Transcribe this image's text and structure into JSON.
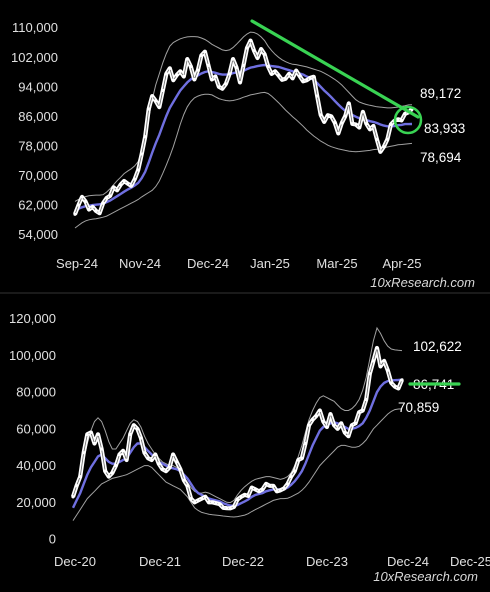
{
  "chart_data": [
    {
      "type": "line",
      "watermark": "10xResearch.com",
      "x_tick_labels": [
        "Sep-24",
        "Nov-24",
        "Dec-24",
        "Jan-25",
        "Mar-25",
        "Apr-25"
      ],
      "y_tick_labels": [
        "54,000",
        "62,000",
        "70,000",
        "78,000",
        "86,000",
        "94,000",
        "102,000",
        "110,000"
      ],
      "ylim": [
        52000,
        111000
      ],
      "callouts": [
        "89,172",
        "83,933",
        "78,694"
      ],
      "colors": {
        "price": "#ffffff",
        "ma": "#6f6fe0",
        "bands": "#bdbdbd",
        "trendline": "#39d353"
      },
      "series": [
        {
          "values": [
            59500,
            62000,
            64200,
            63000,
            60800,
            61500,
            60400,
            59800,
            62500,
            63900,
            64500,
            66800,
            66000,
            67500,
            68500,
            67800,
            67200,
            69000,
            71500,
            75800,
            80500,
            88000,
            91500,
            90200,
            88500,
            93000,
            97500,
            99000,
            95800,
            97200,
            98200,
            96800,
            101500,
            99500,
            96000,
            98500,
            102500,
            103500,
            99800,
            96000,
            96800,
            94000,
            93500,
            94800,
            97500,
            101500,
            99200,
            95200,
            99800,
            104500,
            106500,
            103800,
            101800,
            104200,
            102800,
            99500,
            97500,
            98200,
            97100,
            95900,
            96200,
            97500,
            96300,
            98400,
            96900,
            95500,
            95800,
            96400,
            96700,
            91500,
            86400,
            84500,
            86300,
            86000,
            84300,
            81400,
            84200,
            86100,
            89500,
            84000,
            83800,
            83000,
            87200,
            84000,
            82500,
            83400,
            79800,
            76400,
            77800,
            79800,
            83800,
            84800,
            85200,
            84900,
            86700,
            87100,
            88000
          ]
        },
        {
          "values": [
            60600,
            61000,
            61400,
            61700,
            61800,
            62000,
            62100,
            62200,
            62400,
            62800,
            63200,
            63800,
            64400,
            65000,
            65600,
            66200,
            66700,
            67300,
            68000,
            69300,
            71000,
            73500,
            76200,
            78700,
            81000,
            83600,
            86100,
            88300,
            89900,
            91500,
            93000,
            94100,
            95200,
            96000,
            96600,
            97100,
            97600,
            98000,
            98200,
            98000,
            97800,
            97500,
            97300,
            97300,
            97400,
            97700,
            97900,
            98000,
            98300,
            98800,
            99200,
            99400,
            99600,
            99800,
            99900,
            99800,
            99600,
            99500,
            99400,
            99100,
            98800,
            98500,
            98200,
            97900,
            97600,
            97300,
            96800,
            96400,
            95900,
            95000,
            94000,
            93000,
            92100,
            91200,
            90200,
            89200,
            88300,
            87500,
            87000,
            86400,
            85900,
            85500,
            85300,
            85000,
            84700,
            84500,
            84200,
            83800,
            83500,
            83300,
            83300,
            83400,
            83600,
            83700,
            83900,
            83900,
            83933
          ]
        },
        {
          "values": [
            63000,
            63500,
            64000,
            64300,
            64500,
            64600,
            64700,
            64700,
            64800,
            65500,
            66400,
            67500,
            68600,
            69500,
            70500,
            71200,
            71800,
            72600,
            73800,
            76500,
            80000,
            85500,
            90500,
            94500,
            97500,
            100500,
            103000,
            105000,
            106000,
            106500,
            107000,
            107300,
            107500,
            107600,
            107600,
            107500,
            107200,
            106800,
            106200,
            105500,
            105000,
            104500,
            104000,
            103800,
            104000,
            104600,
            105500,
            106500,
            107500,
            108300,
            108800,
            108700,
            108300,
            107500,
            106500,
            105000,
            103800,
            102800,
            102000,
            101300,
            100800,
            100400,
            100100,
            100000,
            99800,
            99600,
            99400,
            99100,
            98800,
            98500,
            98200,
            97700,
            97200,
            96600,
            96000,
            95300,
            94500,
            93500,
            92500,
            91500,
            90500,
            89900,
            89500,
            89200,
            89000,
            88800,
            88600,
            88500,
            88400,
            88300,
            88300,
            88400,
            88500,
            88700,
            88900,
            89100,
            89172
          ]
        },
        {
          "values": [
            55800,
            56500,
            57200,
            57700,
            58000,
            58200,
            58300,
            58500,
            58700,
            59000,
            59500,
            60000,
            60500,
            61000,
            61500,
            62000,
            62500,
            63000,
            63500,
            64200,
            64800,
            65400,
            66000,
            67000,
            68500,
            70600,
            72800,
            75200,
            77800,
            80800,
            83900,
            86500,
            88600,
            90000,
            91000,
            91500,
            91800,
            92000,
            92000,
            91800,
            91300,
            90800,
            90500,
            90300,
            90200,
            90300,
            90500,
            90800,
            91200,
            91500,
            91800,
            92000,
            92200,
            92400,
            92500,
            92200,
            91500,
            90600,
            89700,
            88700,
            87700,
            86800,
            85900,
            85100,
            84200,
            83300,
            82300,
            81500,
            80700,
            80000,
            79300,
            78800,
            78200,
            77800,
            77500,
            77200,
            77000,
            76800,
            76600,
            76500,
            76400,
            76500,
            76600,
            76700,
            76800,
            77000,
            77100,
            77300,
            77500,
            77700,
            77900,
            78100,
            78300,
            78400,
            78500,
            78600,
            78694
          ]
        }
      ]
    },
    {
      "type": "line",
      "watermark": "10xResearch.com",
      "x_tick_labels": [
        "Dec-20",
        "Dec-21",
        "Dec-22",
        "Dec-23",
        "Dec-24",
        "Dec-25"
      ],
      "y_tick_labels": [
        "0",
        "20,000",
        "40,000",
        "60,000",
        "80,000",
        "100,000",
        "120,000"
      ],
      "ylim": [
        0,
        122000
      ],
      "callouts": [
        "102,622",
        "86,741",
        "70,859"
      ],
      "colors": {
        "price": "#ffffff",
        "ma": "#6f6fe0",
        "bands": "#bdbdbd",
        "highlight": "#39d353"
      },
      "series": [
        {
          "values": [
            23000,
            29000,
            34000,
            47000,
            57000,
            58000,
            52000,
            57000,
            49000,
            37000,
            34000,
            36000,
            40000,
            46000,
            48000,
            43000,
            57000,
            62000,
            60000,
            55000,
            47000,
            44000,
            43000,
            46000,
            41000,
            38000,
            37000,
            39000,
            46000,
            42000,
            38000,
            32000,
            29000,
            22000,
            20000,
            21000,
            22000,
            23000,
            20000,
            20000,
            19500,
            19000,
            17000,
            16800,
            16700,
            17500,
            21500,
            23000,
            24000,
            23500,
            28000,
            27000,
            26000,
            27000,
            30000,
            29000,
            29000,
            26000,
            26500,
            27500,
            30000,
            34000,
            37000,
            43000,
            44000,
            52000,
            62000,
            65000,
            67000,
            70000,
            64000,
            61000,
            68000,
            62000,
            60000,
            63000,
            58000,
            56000,
            62000,
            63000,
            69000,
            70000,
            76000,
            90000,
            97000,
            104000,
            94000,
            97000,
            92000,
            85000,
            83000,
            82000,
            86700
          ]
        },
        {
          "values": [
            17000,
            21000,
            25000,
            30000,
            35000,
            39000,
            42000,
            45000,
            46000,
            44000,
            42000,
            41000,
            41000,
            42000,
            43000,
            44000,
            47000,
            50000,
            52000,
            52000,
            50000,
            48000,
            46000,
            44000,
            42000,
            41000,
            40000,
            39000,
            38500,
            38000,
            37000,
            35000,
            33000,
            30000,
            27000,
            25000,
            24000,
            23000,
            22000,
            21500,
            21000,
            20500,
            19500,
            18800,
            18200,
            18000,
            18500,
            19500,
            20500,
            21500,
            23000,
            24000,
            24500,
            25000,
            26000,
            26500,
            27000,
            27000,
            27000,
            27000,
            28000,
            29500,
            31500,
            34000,
            37000,
            41000,
            46000,
            51000,
            55000,
            59000,
            61000,
            62000,
            63000,
            63500,
            63000,
            62000,
            61000,
            60000,
            60000,
            60500,
            61500,
            63000,
            66000,
            70000,
            75000,
            80000,
            83000,
            85000,
            86000,
            86300,
            86500,
            86600,
            86741
          ]
        },
        {
          "values": [
            22000,
            28000,
            35000,
            43000,
            52000,
            59000,
            64000,
            66000,
            64000,
            59000,
            53000,
            49000,
            49000,
            52000,
            55000,
            59000,
            63000,
            65000,
            64000,
            61000,
            56000,
            52000,
            49000,
            46000,
            44000,
            42000,
            41000,
            40000,
            40000,
            39000,
            37000,
            34000,
            31000,
            28000,
            26000,
            25000,
            25000,
            25500,
            25000,
            24000,
            23000,
            22000,
            21000,
            20000,
            19800,
            21000,
            24000,
            26500,
            28500,
            30000,
            31500,
            32500,
            33000,
            33500,
            34000,
            34000,
            33500,
            33000,
            32500,
            33000,
            34000,
            36000,
            40000,
            45000,
            51000,
            58000,
            65000,
            70000,
            74000,
            77000,
            78000,
            77000,
            76000,
            75000,
            73000,
            71000,
            70000,
            70000,
            71000,
            73000,
            76000,
            81000,
            88000,
            98000,
            108000,
            115000,
            112000,
            108000,
            105000,
            103500,
            103000,
            102800,
            102622
          ]
        },
        {
          "values": [
            10000,
            13000,
            16000,
            19000,
            22000,
            24000,
            26000,
            28000,
            30000,
            31000,
            32000,
            33000,
            33500,
            34000,
            34500,
            35000,
            36000,
            37000,
            38000,
            39000,
            40000,
            40000,
            39000,
            37000,
            35000,
            33000,
            31000,
            30000,
            29000,
            28000,
            27000,
            25000,
            23000,
            20000,
            17000,
            15500,
            14500,
            14000,
            13500,
            13200,
            13000,
            12800,
            12500,
            12300,
            12100,
            12000,
            12200,
            12600,
            13000,
            13800,
            15000,
            16000,
            17000,
            18000,
            19000,
            20000,
            21000,
            21500,
            22000,
            22000,
            22200,
            23000,
            24000,
            25000,
            26500,
            28500,
            31000,
            34000,
            37000,
            40000,
            42000,
            44000,
            46000,
            48000,
            50000,
            51000,
            51000,
            50500,
            50000,
            50000,
            50500,
            52000,
            54000,
            57000,
            60000,
            62000,
            64000,
            66000,
            68000,
            69500,
            70500,
            70800,
            70859
          ]
        }
      ]
    }
  ]
}
